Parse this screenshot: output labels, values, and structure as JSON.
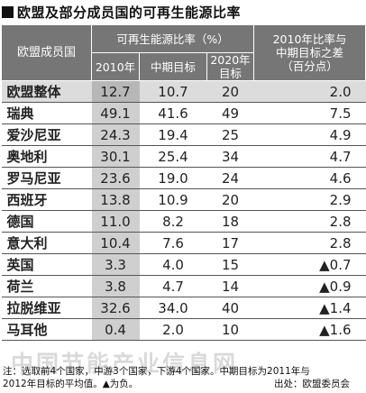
{
  "title": "欧盟及部分成员国的可再生能源比率",
  "headers": {
    "member": "欧盟成员国",
    "ratio_group": "可再生能源比率（%）",
    "diff_group_line1": "2010年比率与",
    "diff_group_line2": "中期目标之差",
    "diff_group_line3": "（百分点）",
    "y2010": "2010年",
    "midterm": "中期目标",
    "target2020_line1": "2020年",
    "target2020_line2": "目标"
  },
  "rows": [
    {
      "name": "欧盟整体",
      "v2010": "12.7",
      "mid": "10.7",
      "t2020": "20",
      "diff": "2.0"
    },
    {
      "name": "瑞典",
      "v2010": "49.1",
      "mid": "41.6",
      "t2020": "49",
      "diff": "7.5"
    },
    {
      "name": "爱沙尼亚",
      "v2010": "24.3",
      "mid": "19.4",
      "t2020": "25",
      "diff": "4.9"
    },
    {
      "name": "奥地利",
      "v2010": "30.1",
      "mid": "25.4",
      "t2020": "34",
      "diff": "4.7"
    },
    {
      "name": "罗马尼亚",
      "v2010": "23.6",
      "mid": "19.0",
      "t2020": "24",
      "diff": "4.6"
    },
    {
      "name": "西班牙",
      "v2010": "13.8",
      "mid": "10.9",
      "t2020": "20",
      "diff": "2.9"
    },
    {
      "name": "德国",
      "v2010": "11.0",
      "mid": "8.2",
      "t2020": "18",
      "diff": "2.8"
    },
    {
      "name": "意大利",
      "v2010": "10.4",
      "mid": "7.6",
      "t2020": "17",
      "diff": "2.8"
    },
    {
      "name": "英国",
      "v2010": "3.3",
      "mid": "4.0",
      "t2020": "15",
      "diff": "▲0.7"
    },
    {
      "name": "荷兰",
      "v2010": "3.8",
      "mid": "4.7",
      "t2020": "14",
      "diff": "▲0.9"
    },
    {
      "name": "拉脱维亚",
      "v2010": "32.6",
      "mid": "34.0",
      "t2020": "40",
      "diff": "▲1.4"
    },
    {
      "name": "马耳他",
      "v2010": "0.4",
      "mid": "2.0",
      "t2020": "10",
      "diff": "▲1.6"
    }
  ],
  "note_line1": "注：选取前4个国家，中游3个国家，下游4个国家。中期目标为2011年与",
  "note_line2": "2012年目标的平均值。▲为负。",
  "source": "出处：欧盟委员会",
  "watermark": "中国节能产业信息网",
  "colors": {
    "header_bg": "#767676",
    "highlight_column": "#cfcfcf"
  }
}
